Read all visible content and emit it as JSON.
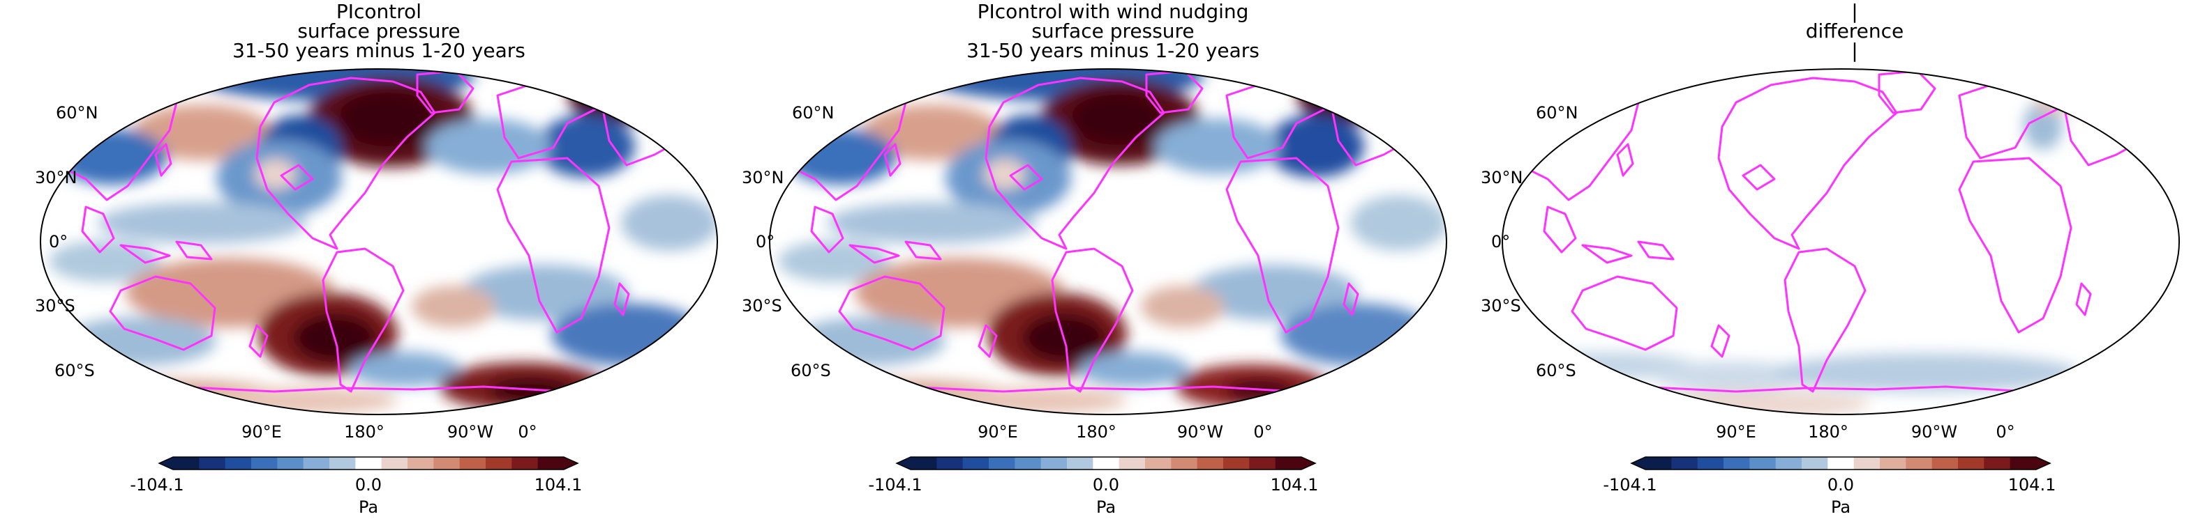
{
  "figure": {
    "panels": [
      {
        "title_lines": [
          "PIcontrol",
          "surface pressure",
          "31-50 years minus 1-20 years"
        ],
        "lat_labels": [
          "60°N",
          "30°N",
          "0°",
          "30°S",
          "60°S"
        ],
        "lon_labels": [
          "90°E",
          "180°",
          "90°W",
          "0°"
        ],
        "colorbar": {
          "min_label": "-104.1",
          "mid_label": "0.0",
          "max_label": "104.1",
          "unit": "Pa"
        }
      },
      {
        "title_lines": [
          "PIcontrol with wind nudging",
          "surface pressure",
          "31-50 years minus 1-20 years"
        ],
        "lat_labels": [
          "60°N",
          "30°N",
          "0°",
          "30°S",
          "60°S"
        ],
        "lon_labels": [
          "90°E",
          "180°",
          "90°W",
          "0°"
        ],
        "colorbar": {
          "min_label": "-104.1",
          "mid_label": "0.0",
          "max_label": "104.1",
          "unit": "Pa"
        }
      },
      {
        "title_lines": [
          "|",
          "difference",
          "|"
        ],
        "lat_labels": [
          "60°N",
          "30°N",
          "0°",
          "30°S",
          "60°S"
        ],
        "lon_labels": [
          "90°E",
          "180°",
          "90°W",
          "0°"
        ],
        "colorbar": {
          "min_label": "-104.1",
          "mid_label": "0.0",
          "max_label": "104.1",
          "unit": "Pa"
        }
      }
    ],
    "colormap": [
      "#0b1d4a",
      "#16327a",
      "#1f4e9e",
      "#3a6fba",
      "#5a8fca",
      "#86aed6",
      "#b0c9de",
      "#ffffff",
      "#ead3cc",
      "#dfae9c",
      "#d28a72",
      "#bf6148",
      "#a23a2a",
      "#7a1a1c",
      "#4a0510"
    ],
    "coastline_color": "#ff33ff"
  }
}
